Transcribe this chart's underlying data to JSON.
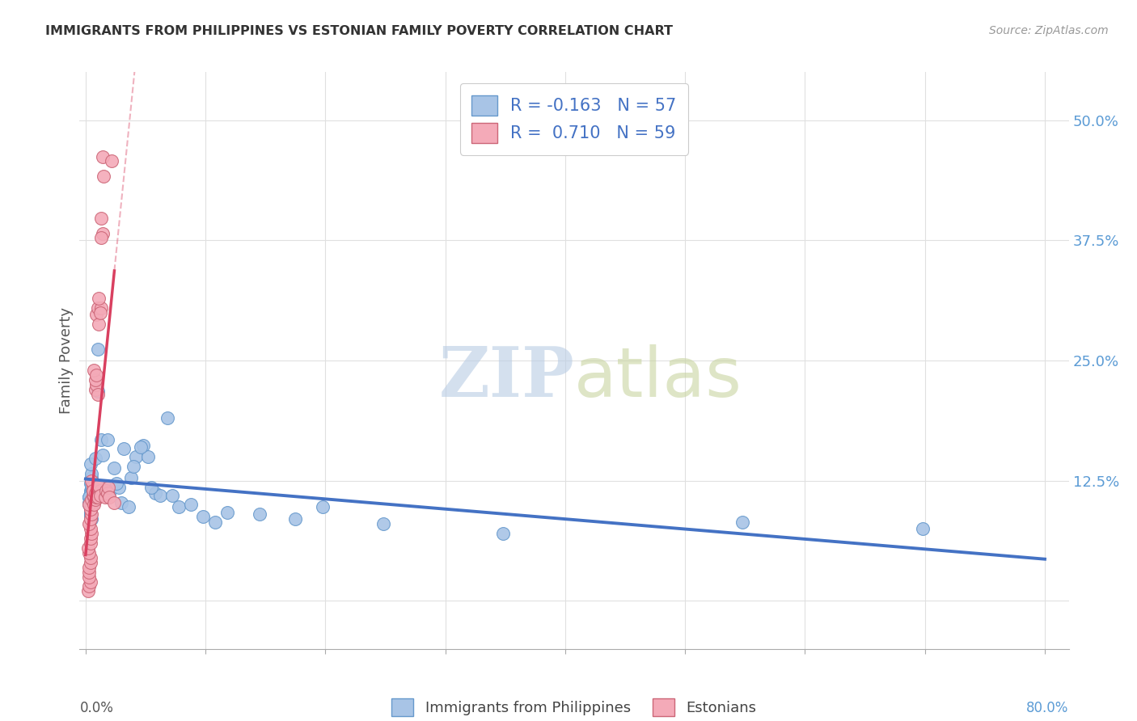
{
  "title": "IMMIGRANTS FROM PHILIPPINES VS ESTONIAN FAMILY POVERTY CORRELATION CHART",
  "source": "Source: ZipAtlas.com",
  "ylabel": "Family Poverty",
  "ytick_labels": [
    "",
    "12.5%",
    "25.0%",
    "37.5%",
    "50.0%"
  ],
  "ytick_values": [
    0.0,
    0.125,
    0.25,
    0.375,
    0.5
  ],
  "xlim": [
    -0.005,
    0.82
  ],
  "ylim": [
    -0.05,
    0.55
  ],
  "R_blue": "-0.163",
  "N_blue": "57",
  "R_pink": "0.710",
  "N_pink": "59",
  "blue_dot_color": "#a8c4e6",
  "blue_dot_edge": "#6699cc",
  "blue_line_color": "#4472c4",
  "pink_dot_color": "#f4aab8",
  "pink_dot_edge": "#cc6677",
  "pink_line_color": "#d94060",
  "label_blue": "Immigrants from Philippines",
  "label_pink": "Estonians",
  "title_color": "#333333",
  "source_color": "#999999",
  "axis_label_color": "#555555",
  "right_axis_color": "#5b9bd5",
  "legend_text_color": "#4472c4",
  "grid_color": "#e0e0e0",
  "blue_scatter_x": [
    0.004,
    0.003,
    0.004,
    0.003,
    0.004,
    0.005,
    0.004,
    0.003,
    0.005,
    0.004,
    0.005,
    0.005,
    0.004,
    0.004,
    0.003,
    0.005,
    0.006,
    0.006,
    0.005,
    0.004,
    0.01,
    0.013,
    0.01,
    0.008,
    0.016,
    0.02,
    0.024,
    0.028,
    0.018,
    0.014,
    0.032,
    0.038,
    0.026,
    0.042,
    0.03,
    0.036,
    0.048,
    0.052,
    0.04,
    0.046,
    0.058,
    0.062,
    0.055,
    0.068,
    0.072,
    0.078,
    0.088,
    0.098,
    0.108,
    0.118,
    0.145,
    0.175,
    0.198,
    0.248,
    0.348,
    0.548,
    0.698
  ],
  "blue_scatter_y": [
    0.115,
    0.1,
    0.095,
    0.108,
    0.09,
    0.085,
    0.112,
    0.108,
    0.118,
    0.122,
    0.12,
    0.098,
    0.088,
    0.092,
    0.102,
    0.128,
    0.115,
    0.108,
    0.132,
    0.142,
    0.262,
    0.168,
    0.218,
    0.148,
    0.118,
    0.112,
    0.138,
    0.118,
    0.168,
    0.152,
    0.158,
    0.128,
    0.122,
    0.15,
    0.102,
    0.098,
    0.162,
    0.15,
    0.14,
    0.16,
    0.112,
    0.11,
    0.118,
    0.19,
    0.11,
    0.098,
    0.1,
    0.088,
    0.082,
    0.092,
    0.09,
    0.085,
    0.098,
    0.08,
    0.07,
    0.082,
    0.075
  ],
  "pink_scatter_x": [
    0.002,
    0.003,
    0.004,
    0.003,
    0.003,
    0.003,
    0.004,
    0.004,
    0.003,
    0.002,
    0.004,
    0.004,
    0.005,
    0.004,
    0.003,
    0.004,
    0.005,
    0.004,
    0.003,
    0.005,
    0.006,
    0.007,
    0.006,
    0.005,
    0.007,
    0.008,
    0.007,
    0.006,
    0.008,
    0.009,
    0.008,
    0.007,
    0.009,
    0.01,
    0.009,
    0.008,
    0.01,
    0.009,
    0.01,
    0.011,
    0.012,
    0.011,
    0.01,
    0.012,
    0.013,
    0.012,
    0.011,
    0.013,
    0.014,
    0.013,
    0.014,
    0.015,
    0.016,
    0.017,
    0.018,
    0.019,
    0.02,
    0.022,
    0.024
  ],
  "pink_scatter_y": [
    0.01,
    0.015,
    0.02,
    0.025,
    0.03,
    0.035,
    0.04,
    0.045,
    0.05,
    0.055,
    0.06,
    0.065,
    0.07,
    0.075,
    0.08,
    0.085,
    0.09,
    0.095,
    0.1,
    0.105,
    0.11,
    0.115,
    0.12,
    0.125,
    0.1,
    0.105,
    0.11,
    0.115,
    0.22,
    0.225,
    0.23,
    0.24,
    0.235,
    0.215,
    0.108,
    0.112,
    0.118,
    0.298,
    0.305,
    0.288,
    0.115,
    0.12,
    0.108,
    0.11,
    0.305,
    0.3,
    0.315,
    0.398,
    0.382,
    0.378,
    0.462,
    0.442,
    0.108,
    0.115,
    0.112,
    0.118,
    0.108,
    0.458,
    0.102
  ]
}
